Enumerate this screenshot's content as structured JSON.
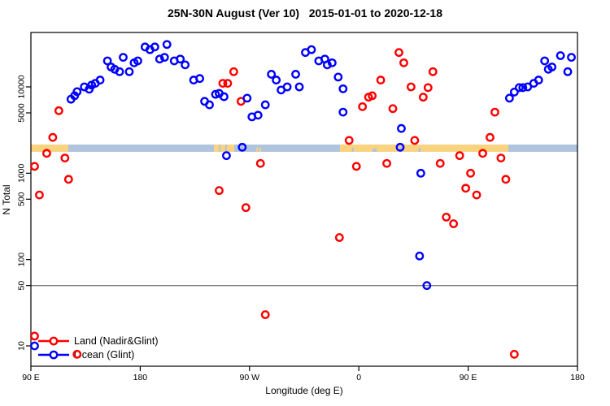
{
  "title": "25N-30N August (Ver 10)   2015-01-01 to 2020-12-18",
  "axes": {
    "x": {
      "label": "Longitude (deg E)"
    },
    "y": {
      "label": "N Total"
    }
  },
  "legend": {
    "items": [
      {
        "label": "Land (Nadir&Glint)",
        "color": "#ff0000"
      },
      {
        "label": "Ocean (Glint)",
        "color": "#0000ff"
      }
    ]
  },
  "colors": {
    "land_series": "#ff0000",
    "ocean_series": "#0000ff",
    "band_land": "#f9d37f",
    "band_ocean": "#b0c4de",
    "reference_line": "#7f7f7f",
    "axis": "#000000"
  },
  "chart_data": {
    "type": "scatter",
    "title": "25N-30N August (Ver 10)   2015-01-01 to 2020-12-18",
    "x_axis": {
      "label": "Longitude (deg E)",
      "note": "longitude axis wraps: 90E to 180, 90W, 0, 90E, 180; stored values are axis-space degrees 90..540",
      "tick_values": [
        90,
        180,
        270,
        360,
        450,
        540
      ],
      "tick_labels": [
        "90 E",
        "180",
        "90 W",
        "0",
        "90 E",
        "180"
      ],
      "range": [
        90,
        540
      ]
    },
    "y_axis": {
      "label": "N Total",
      "scale": "log10",
      "tick_values": [
        10,
        50,
        100,
        500,
        1000,
        5000,
        10000
      ],
      "range": [
        7,
        35000
      ]
    },
    "reference_line_y": 50,
    "grid": "off",
    "legend_position": "bottom-left",
    "series": [
      {
        "name": "Land (Nadir&Glint)",
        "color": "#ff0000",
        "points": [
          [
            93,
            1200
          ],
          [
            93,
            13
          ],
          [
            97,
            560
          ],
          [
            103,
            1700
          ],
          [
            108,
            2600
          ],
          [
            113,
            5300
          ],
          [
            118,
            1500
          ],
          [
            121,
            850
          ],
          [
            128,
            8
          ],
          [
            245,
            630
          ],
          [
            248,
            11000
          ],
          [
            252,
            11000
          ],
          [
            257,
            15000
          ],
          [
            263,
            6800
          ],
          [
            267,
            400
          ],
          [
            279,
            1300
          ],
          [
            283,
            23
          ],
          [
            344,
            180
          ],
          [
            352,
            2400
          ],
          [
            358,
            1200
          ],
          [
            363,
            5900
          ],
          [
            368,
            7600
          ],
          [
            371,
            7900
          ],
          [
            378,
            12000
          ],
          [
            383,
            1300
          ],
          [
            388,
            5600
          ],
          [
            393,
            25000
          ],
          [
            397,
            19000
          ],
          [
            403,
            10000
          ],
          [
            406,
            2400
          ],
          [
            413,
            7600
          ],
          [
            417,
            9800
          ],
          [
            421,
            15000
          ],
          [
            427,
            1300
          ],
          [
            432,
            310
          ],
          [
            438,
            260
          ],
          [
            443,
            1600
          ],
          [
            448,
            670
          ],
          [
            452,
            1000
          ],
          [
            457,
            560
          ],
          [
            462,
            1700
          ],
          [
            468,
            2600
          ],
          [
            472,
            5100
          ],
          [
            477,
            1500
          ],
          [
            481,
            850
          ],
          [
            488,
            8
          ]
        ]
      },
      {
        "name": "Ocean (Glint)",
        "color": "#0000ff",
        "points": [
          [
            93,
            10
          ],
          [
            123,
            7200
          ],
          [
            126,
            7900
          ],
          [
            128,
            8800
          ],
          [
            134,
            10000
          ],
          [
            138,
            9400
          ],
          [
            140,
            10500
          ],
          [
            143,
            11000
          ],
          [
            147,
            12000
          ],
          [
            153,
            20000
          ],
          [
            156,
            17000
          ],
          [
            159,
            16000
          ],
          [
            163,
            15000
          ],
          [
            166,
            22000
          ],
          [
            171,
            15000
          ],
          [
            175,
            19000
          ],
          [
            178,
            20000
          ],
          [
            184,
            29000
          ],
          [
            188,
            27000
          ],
          [
            192,
            29000
          ],
          [
            196,
            21000
          ],
          [
            200,
            22000
          ],
          [
            202,
            31000
          ],
          [
            208,
            20000
          ],
          [
            213,
            21000
          ],
          [
            217,
            18000
          ],
          [
            224,
            12000
          ],
          [
            229,
            12500
          ],
          [
            233,
            6800
          ],
          [
            237,
            6200
          ],
          [
            242,
            8200
          ],
          [
            245,
            8400
          ],
          [
            249,
            7700
          ],
          [
            251,
            1600
          ],
          [
            264,
            2000
          ],
          [
            268,
            7400
          ],
          [
            272,
            4500
          ],
          [
            277,
            4700
          ],
          [
            283,
            6200
          ],
          [
            288,
            14000
          ],
          [
            292,
            12000
          ],
          [
            296,
            9200
          ],
          [
            301,
            10000
          ],
          [
            308,
            14000
          ],
          [
            311,
            10000
          ],
          [
            316,
            25000
          ],
          [
            321,
            27000
          ],
          [
            327,
            20000
          ],
          [
            332,
            21000
          ],
          [
            334,
            18000
          ],
          [
            338,
            19000
          ],
          [
            343,
            13000
          ],
          [
            347,
            9500
          ],
          [
            347,
            5100
          ],
          [
            394,
            2000
          ],
          [
            395,
            3300
          ],
          [
            411,
            1000
          ],
          [
            410,
            110
          ],
          [
            416,
            50
          ],
          [
            484,
            7400
          ],
          [
            488,
            8700
          ],
          [
            492,
            9800
          ],
          [
            495,
            9800
          ],
          [
            499,
            10000
          ],
          [
            504,
            11000
          ],
          [
            508,
            12000
          ],
          [
            513,
            20000
          ],
          [
            516,
            16000
          ],
          [
            519,
            17000
          ],
          [
            526,
            23000
          ],
          [
            532,
            15000
          ],
          [
            535,
            22000
          ]
        ]
      }
    ],
    "land_ocean_band": {
      "description": "horizontal land/ocean map strip drawn across the plot near N=1800",
      "value_level": 1800,
      "segments": [
        {
          "from": 90,
          "to": 120.8,
          "type": "land"
        },
        {
          "from": 120.8,
          "to": 240.7,
          "type": "ocean"
        },
        {
          "from": 240.7,
          "to": 257.4,
          "type": "land"
        },
        {
          "from": 257.4,
          "to": 344.5,
          "type": "ocean"
        },
        {
          "from": 344.5,
          "to": 483.1,
          "type": "land"
        },
        {
          "from": 483.1,
          "to": 540,
          "type": "ocean"
        }
      ],
      "notches": [
        {
          "deg": 245.6,
          "w": 2,
          "frac": 1.0,
          "type": "ocean"
        },
        {
          "deg": 250.6,
          "w": 2,
          "frac": 1.0,
          "type": "ocean"
        },
        {
          "deg": 276.4,
          "w": 2,
          "frac": 0.6,
          "type": "land"
        },
        {
          "deg": 278.9,
          "w": 2,
          "frac": 0.6,
          "type": "land"
        },
        {
          "deg": 355.0,
          "w": 2,
          "frac": 0.6,
          "type": "ocean"
        },
        {
          "deg": 373.0,
          "w": 5,
          "frac": 0.45,
          "type": "ocean"
        },
        {
          "deg": 394.5,
          "w": 4,
          "frac": 0.7,
          "type": "ocean"
        },
        {
          "deg": 410.0,
          "w": 3,
          "frac": 0.5,
          "type": "ocean"
        }
      ]
    }
  }
}
